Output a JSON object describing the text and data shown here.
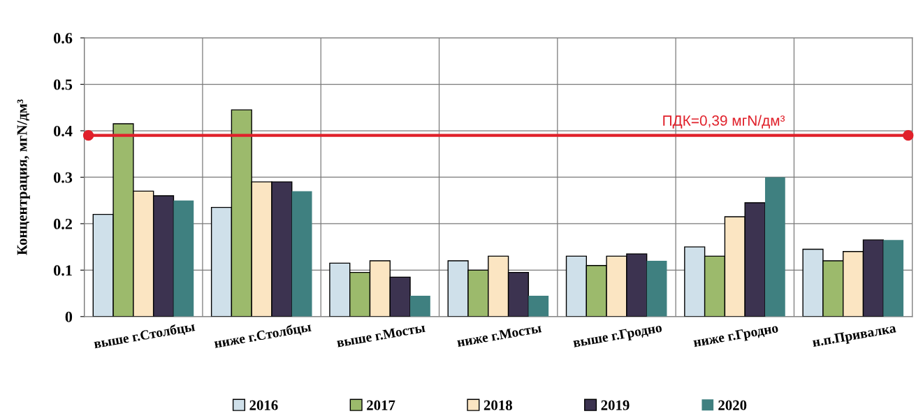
{
  "chart_data": {
    "type": "bar",
    "ylabel": "Концентрация, мгN/дм³",
    "categories": [
      "выше г.Столбцы",
      "ниже г.Столбцы",
      "выше г.Мосты",
      "ниже г.Мосты",
      "выше г.Гродно",
      "ниже г.Гродно",
      "н.п.Привалка"
    ],
    "series": [
      {
        "name": "2016",
        "color": "#cfe0ea",
        "values": [
          0.22,
          0.235,
          0.115,
          0.12,
          0.13,
          0.15,
          0.145
        ]
      },
      {
        "name": "2017",
        "color": "#9cba6c",
        "values": [
          0.415,
          0.445,
          0.095,
          0.1,
          0.11,
          0.13,
          0.12
        ]
      },
      {
        "name": "2018",
        "color": "#fbe5c2",
        "values": [
          0.27,
          0.29,
          0.12,
          0.13,
          0.13,
          0.215,
          0.14
        ]
      },
      {
        "name": "2019",
        "color": "#3c3350",
        "values": [
          0.26,
          0.29,
          0.085,
          0.095,
          0.135,
          0.245,
          0.165
        ]
      },
      {
        "name": "2020",
        "color": "#3f8080",
        "values": [
          0.25,
          0.27,
          0.045,
          0.045,
          0.12,
          0.3,
          0.165
        ]
      }
    ],
    "ylim": [
      0,
      0.6
    ],
    "yticks": [
      0,
      0.1,
      0.2,
      0.3,
      0.4,
      0.5,
      0.6
    ],
    "grid": true,
    "legend": "bottom",
    "ref_lines": [
      {
        "axis": "y",
        "value": 0.39,
        "label": "ПДК=0,39 мгN/дм³",
        "color": "#e0202a",
        "line_style": "solid"
      }
    ]
  }
}
